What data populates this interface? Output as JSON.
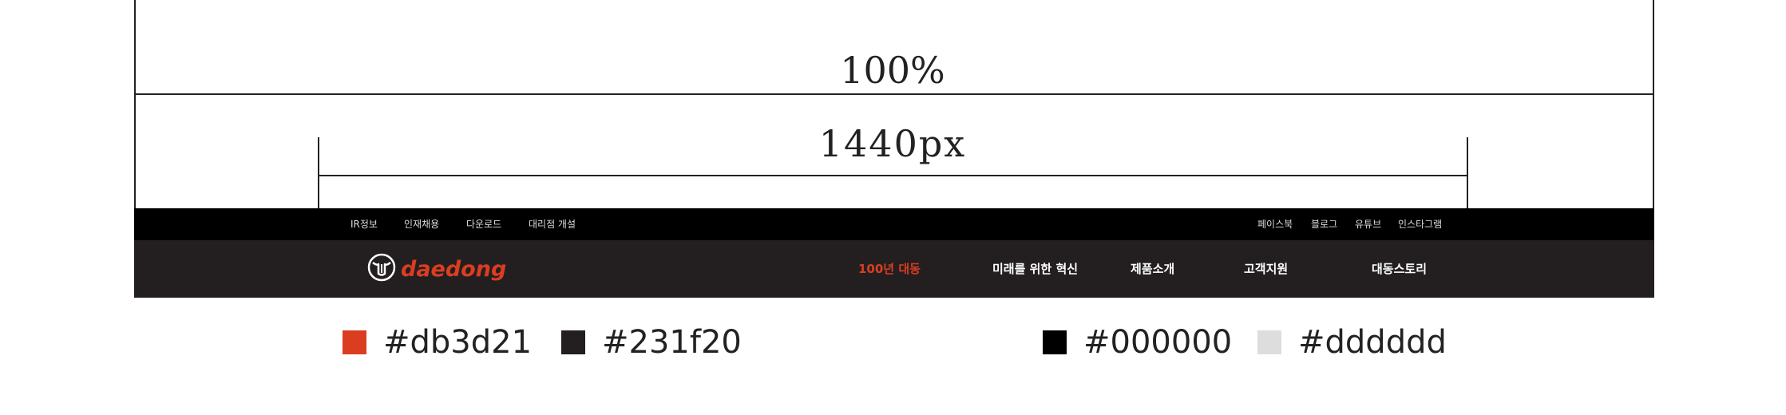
{
  "annotations": {
    "full_width_label": "100%",
    "content_width_label": "1440px"
  },
  "topbar": {
    "left_links": [
      "IR정보",
      "인재채용",
      "다운로드",
      "대리점 개설"
    ],
    "right_links": [
      "페이스북",
      "블로그",
      "유튜브",
      "인스타그램"
    ]
  },
  "mainbar": {
    "logo_text": "daedong",
    "logo_icon": "bull-head-icon",
    "nav": [
      {
        "label": "100년 대동",
        "active": true
      },
      {
        "label": "미래를 위한 혁신",
        "active": false
      },
      {
        "label": "제품소개",
        "active": false
      },
      {
        "label": "고객지원",
        "active": false
      },
      {
        "label": "대동스토리",
        "active": false
      }
    ]
  },
  "palette": [
    {
      "hex": "#db3d21",
      "label": "#db3d21"
    },
    {
      "hex": "#231f20",
      "label": "#231f20"
    },
    {
      "hex": "#000000",
      "label": "#000000"
    },
    {
      "hex": "#dddddd",
      "label": "#dddddd"
    }
  ]
}
